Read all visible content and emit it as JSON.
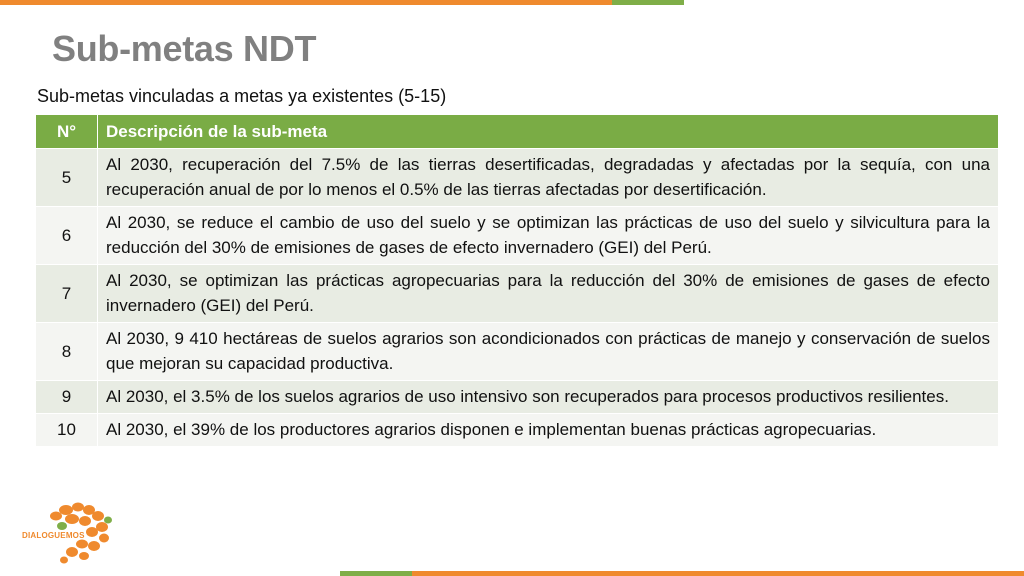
{
  "slide": {
    "title": "Sub-metas NDT",
    "subtitle": "Sub-metas vinculadas a metas ya existentes (5-15)"
  },
  "table": {
    "headers": [
      "N°",
      "Descripción de la sub-meta"
    ],
    "rows": [
      {
        "n": "5",
        "desc": "Al 2030, recuperación del 7.5% de las tierras desertificadas, degradadas y afectadas por la sequía, con una recuperación anual de por lo menos el 0.5% de las tierras afectadas por desertificación."
      },
      {
        "n": "6",
        "desc": "Al 2030, se reduce el cambio de uso del suelo y se optimizan las prácticas de uso del suelo y silvicultura para la reducción del 30% de emisiones de gases de efecto invernadero (GEI) del Perú."
      },
      {
        "n": "7",
        "desc": "Al 2030, se optimizan las prácticas agropecuarias para la reducción del 30% de emisiones de gases de efecto invernadero (GEI) del Perú."
      },
      {
        "n": "8",
        "desc": "Al 2030, 9 410 hectáreas de suelos agrarios son acondicionados con prácticas de manejo y conservación de suelos que mejoran su capacidad productiva."
      },
      {
        "n": "9",
        "desc": "Al 2030, el 3.5% de los suelos agrarios de uso intensivo son recuperados para procesos productivos resilientes."
      },
      {
        "n": "10",
        "desc": "Al 2030, el 39% de los productores agrarios disponen e implementan buenas prácticas agropecuarias."
      }
    ]
  },
  "logo": {
    "text": "DIALOGUEMOS",
    "icon": "speech-bubbles-icon",
    "color": "#ef8a2e"
  },
  "colors": {
    "header": "#7aac45",
    "accent_orange": "#ef8a2e",
    "accent_green": "#7fae48"
  }
}
